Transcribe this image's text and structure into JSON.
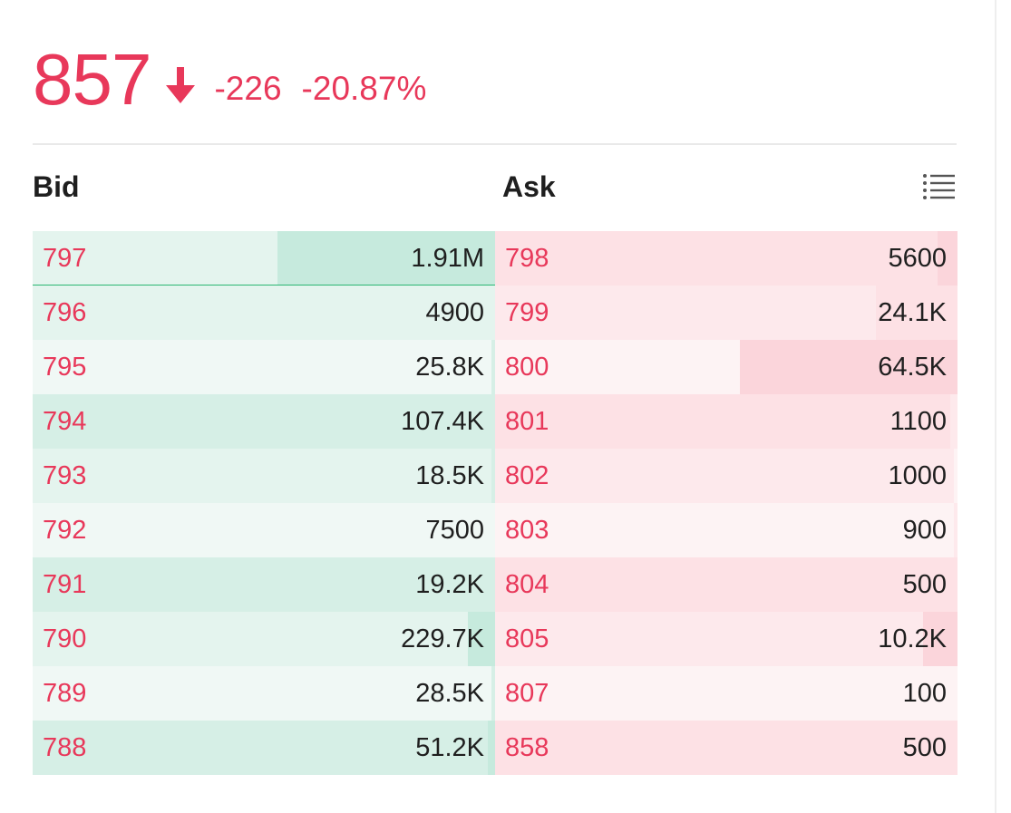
{
  "quote": {
    "price": "857",
    "change": "-226",
    "change_pct": "-20.87%",
    "direction_icon": "arrow-down-icon",
    "color": "#e8385a"
  },
  "book": {
    "bid_label": "Bid",
    "ask_label": "Ask",
    "menu_icon": "list-icon",
    "bid_color": "#2bb673",
    "ask_color": "#e8385a",
    "rows": [
      {
        "bid_price": "797",
        "bid_vol": "1.91M",
        "ask_price": "798",
        "ask_vol": "5600"
      },
      {
        "bid_price": "796",
        "bid_vol": "4900",
        "ask_price": "799",
        "ask_vol": "24.1K"
      },
      {
        "bid_price": "795",
        "bid_vol": "25.8K",
        "ask_price": "800",
        "ask_vol": "64.5K"
      },
      {
        "bid_price": "794",
        "bid_vol": "107.4K",
        "ask_price": "801",
        "ask_vol": "1100"
      },
      {
        "bid_price": "793",
        "bid_vol": "18.5K",
        "ask_price": "802",
        "ask_vol": "1000"
      },
      {
        "bid_price": "792",
        "bid_vol": "7500",
        "ask_price": "803",
        "ask_vol": "900"
      },
      {
        "bid_price": "791",
        "bid_vol": "19.2K",
        "ask_price": "804",
        "ask_vol": "500"
      },
      {
        "bid_price": "790",
        "bid_vol": "229.7K",
        "ask_price": "805",
        "ask_vol": "10.2K"
      },
      {
        "bid_price": "789",
        "bid_vol": "28.5K",
        "ask_price": "807",
        "ask_vol": "100"
      },
      {
        "bid_price": "788",
        "bid_vol": "51.2K",
        "ask_price": "858",
        "ask_vol": "500"
      }
    ]
  }
}
